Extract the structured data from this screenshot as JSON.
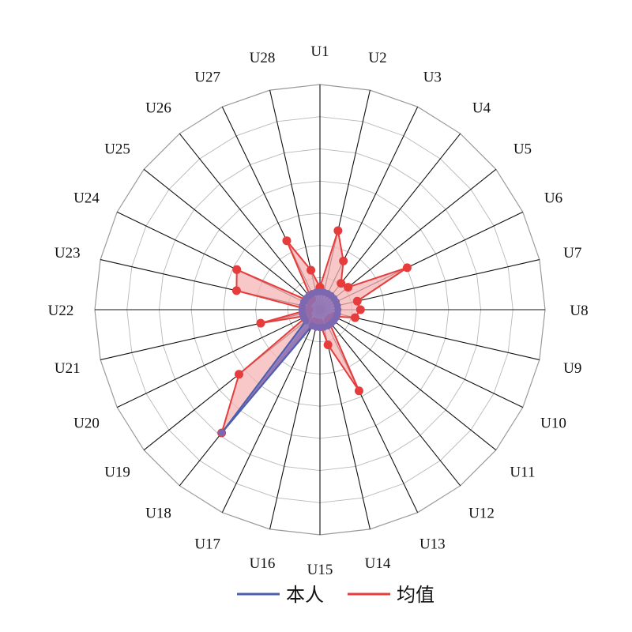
{
  "chart_data": {
    "type": "radar",
    "axes": [
      "U1",
      "U2",
      "U3",
      "U4",
      "U5",
      "U6",
      "U7",
      "U8",
      "U9",
      "U10",
      "U11",
      "U12",
      "U13",
      "U14",
      "U15",
      "U16",
      "U17",
      "U18",
      "U19",
      "U20",
      "U21",
      "U22",
      "U23",
      "U24",
      "U25",
      "U26",
      "U27",
      "U28"
    ],
    "rmax": 10,
    "rings": 7,
    "series": [
      {
        "name": "本人",
        "color": "#4a5fb0",
        "fill": "#8a72b8",
        "values": [
          0.8,
          0.8,
          0.8,
          0.8,
          0.8,
          0.8,
          0.8,
          0.8,
          0.8,
          0.8,
          0.8,
          0.8,
          0.8,
          0.8,
          0.8,
          0.8,
          0.8,
          7.0,
          0.8,
          0.8,
          0.8,
          0.8,
          0.8,
          0.8,
          0.8,
          0.8,
          0.8,
          0.8
        ]
      },
      {
        "name": "均值",
        "color": "#e63c3c",
        "fill": "#f6b4b6",
        "values": [
          1.0,
          3.6,
          2.4,
          1.5,
          1.6,
          4.3,
          1.7,
          1.8,
          1.6,
          0.7,
          0.6,
          0.6,
          4.0,
          1.6,
          0.6,
          0.6,
          0.6,
          7.0,
          4.6,
          0.6,
          2.7,
          0.5,
          3.8,
          4.1,
          0.6,
          0.6,
          3.4,
          1.8
        ]
      }
    ],
    "legend_position": "bottom-center",
    "grid": true
  }
}
